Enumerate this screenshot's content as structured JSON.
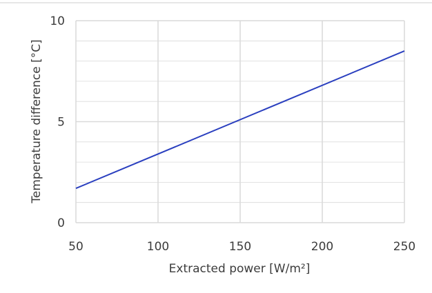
{
  "chart_data": {
    "type": "line",
    "title": "",
    "xlabel": "Extracted power [W/m²]",
    "ylabel": "Temperature difference [°C]",
    "xlim": [
      50,
      250
    ],
    "ylim": [
      0,
      10
    ],
    "x_ticks": [
      50,
      100,
      150,
      200,
      250
    ],
    "y_ticks": [
      0,
      5,
      10
    ],
    "grid": true,
    "legend": "none",
    "series": [
      {
        "color": "#2a3fbf",
        "x": [
          50,
          250
        ],
        "y": [
          1.7,
          8.5
        ]
      }
    ],
    "colors": {
      "grid": "#d9d9d9",
      "text": "#3c3c3c",
      "top_rule": "#dddddd"
    }
  }
}
